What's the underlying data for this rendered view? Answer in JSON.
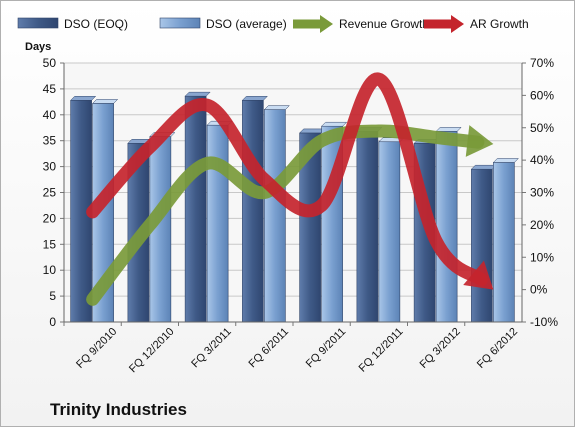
{
  "chart_data": {
    "type": "bar",
    "title": "Trinity Industries",
    "ylabel": "Days",
    "ylim": [
      0,
      50
    ],
    "y2lim": [
      -10,
      70
    ],
    "y_ticks": [
      "0",
      "5",
      "10",
      "15",
      "20",
      "25",
      "30",
      "35",
      "40",
      "45",
      "50"
    ],
    "y2_ticks": [
      "-10%",
      "0%",
      "10%",
      "20%",
      "30%",
      "40%",
      "50%",
      "60%",
      "70%"
    ],
    "categories": [
      "FQ 9/2010",
      "FQ 12/2010",
      "FQ 3/2011",
      "FQ 6/2011",
      "FQ 9/2011",
      "FQ 12/2011",
      "FQ 3/2012",
      "FQ 6/2012"
    ],
    "legend_position": "top",
    "grid": true,
    "series": [
      {
        "name": "DSO (EOQ)",
        "type": "bar",
        "axis": "left",
        "color": "#4a6694",
        "values": [
          42.8,
          34.5,
          43.6,
          42.8,
          36.5,
          36.8,
          34.5,
          29.5
        ]
      },
      {
        "name": "DSO (average)",
        "type": "bar",
        "axis": "left",
        "color": "#7aa0d0",
        "values": [
          42.2,
          35.8,
          38.0,
          41.0,
          37.8,
          34.8,
          36.8,
          30.8
        ]
      },
      {
        "name": "Revenue Growth",
        "type": "arrow-line",
        "axis": "right",
        "color": "#7a9a3a",
        "unit": "%",
        "values": [
          -3,
          20,
          39,
          30,
          46,
          49,
          47,
          45
        ]
      },
      {
        "name": "AR Growth",
        "type": "arrow-line",
        "axis": "right",
        "color": "#c4242c",
        "unit": "%",
        "values": [
          24,
          44,
          57,
          34,
          26,
          65,
          15,
          0
        ]
      }
    ]
  }
}
